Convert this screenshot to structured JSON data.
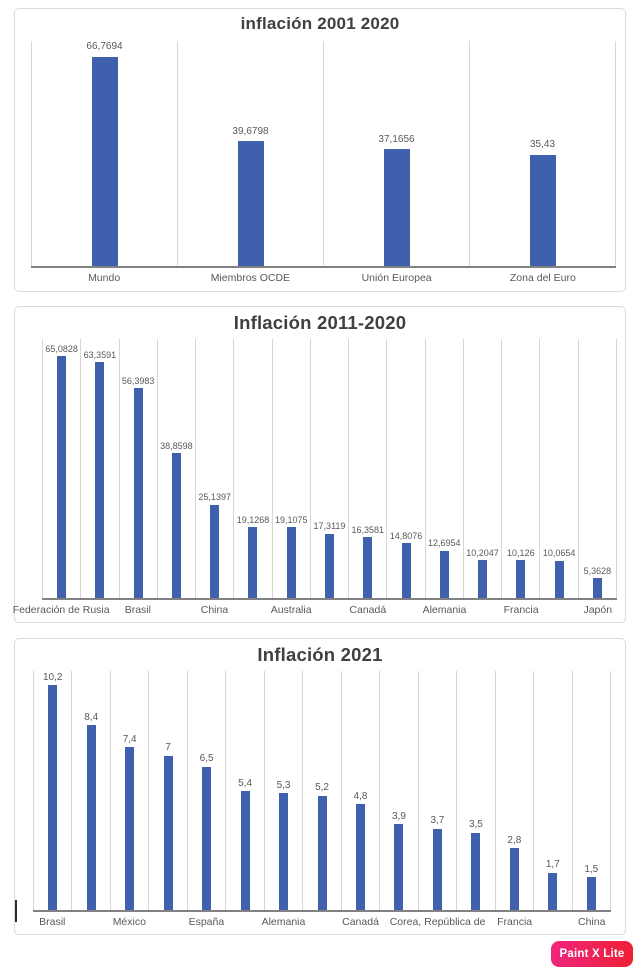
{
  "page": {
    "background": "#ffffff"
  },
  "watermark": {
    "label": "Paint X Lite",
    "bg_gradient": [
      "#F0257E",
      "#EE2034"
    ],
    "text_color": "#ffffff"
  },
  "chart_data": [
    {
      "type": "bar",
      "title": "inflación 2001 2020",
      "bar_color": "#3E60AD",
      "gridline_color": "#D6D6D6",
      "axis_line_color": "#828282",
      "label_color": "#595959",
      "grid": "vertical-only",
      "data_labels": "above-bars",
      "legend": "none",
      "ylim": [
        0,
        71.5
      ],
      "points": [
        {
          "label": "Mundo",
          "value": 66.7694,
          "value_label": "66,7694"
        },
        {
          "label": "Miembros OCDE",
          "value": 39.6798,
          "value_label": "39,6798"
        },
        {
          "label": "Unión Europea",
          "value": 37.1656,
          "value_label": "37,1656"
        },
        {
          "label": "Zona del Euro",
          "value": 35.43,
          "value_label": "35,43"
        }
      ]
    },
    {
      "type": "bar",
      "title": "Inflación 2011-2020",
      "bar_color": "#3E60AD",
      "gridline_color": "#D6D6D6",
      "axis_line_color": "#828282",
      "label_color": "#595959",
      "grid": "vertical-only",
      "data_labels": "above-bars",
      "legend": "none",
      "axis_note": "only alternate category labels shown",
      "ylim": [
        0,
        69.6
      ],
      "points": [
        {
          "label": "Federación de Rusia",
          "value": 65.0828,
          "value_label": "65,0828"
        },
        {
          "label": "",
          "value": 63.3591,
          "value_label": "63,3591"
        },
        {
          "label": "Brasil",
          "value": 56.3983,
          "value_label": "56,3983"
        },
        {
          "label": "",
          "value": 38.8598,
          "value_label": "38,8598"
        },
        {
          "label": "China",
          "value": 25.1397,
          "value_label": "25,1397"
        },
        {
          "label": "",
          "value": 19.1268,
          "value_label": "19,1268"
        },
        {
          "label": "Australia",
          "value": 19.1075,
          "value_label": "19,1075"
        },
        {
          "label": "",
          "value": 17.3119,
          "value_label": "17,3119"
        },
        {
          "label": "Canadá",
          "value": 16.3581,
          "value_label": "16,3581"
        },
        {
          "label": "",
          "value": 14.8076,
          "value_label": "14,8076"
        },
        {
          "label": "Alemania",
          "value": 12.6954,
          "value_label": "12,6954"
        },
        {
          "label": "",
          "value": 10.2047,
          "value_label": "10,2047"
        },
        {
          "label": "Francia",
          "value": 10.126,
          "value_label": "10,126"
        },
        {
          "label": "",
          "value": 10.0654,
          "value_label": "10,0654"
        },
        {
          "label": "Japón",
          "value": 5.3628,
          "value_label": "5,3628"
        }
      ]
    },
    {
      "type": "bar",
      "title": "Inflación 2021",
      "bar_color": "#3E60AD",
      "gridline_color": "#D6D6D6",
      "axis_line_color": "#828282",
      "label_color": "#595959",
      "grid": "vertical-only",
      "data_labels": "above-bars",
      "legend": "none",
      "axis_note": "only alternate category labels shown",
      "ylim": [
        0,
        10.85
      ],
      "points": [
        {
          "label": "Brasil",
          "value": 10.2,
          "value_label": "10,2"
        },
        {
          "label": "",
          "value": 8.4,
          "value_label": "8,4"
        },
        {
          "label": "México",
          "value": 7.4,
          "value_label": "7,4"
        },
        {
          "label": "",
          "value": 7,
          "value_label": "7"
        },
        {
          "label": "España",
          "value": 6.5,
          "value_label": "6,5"
        },
        {
          "label": "",
          "value": 5.4,
          "value_label": "5,4"
        },
        {
          "label": "Alemania",
          "value": 5.3,
          "value_label": "5,3"
        },
        {
          "label": "",
          "value": 5.2,
          "value_label": "5,2"
        },
        {
          "label": "Canadá",
          "value": 4.8,
          "value_label": "4,8"
        },
        {
          "label": "",
          "value": 3.9,
          "value_label": "3,9"
        },
        {
          "label": "Corea, República de",
          "value": 3.7,
          "value_label": "3,7"
        },
        {
          "label": "",
          "value": 3.5,
          "value_label": "3,5"
        },
        {
          "label": "Francia",
          "value": 2.8,
          "value_label": "2,8"
        },
        {
          "label": "",
          "value": 1.7,
          "value_label": "1,7"
        },
        {
          "label": "China",
          "value": 1.5,
          "value_label": "1,5"
        }
      ]
    }
  ]
}
